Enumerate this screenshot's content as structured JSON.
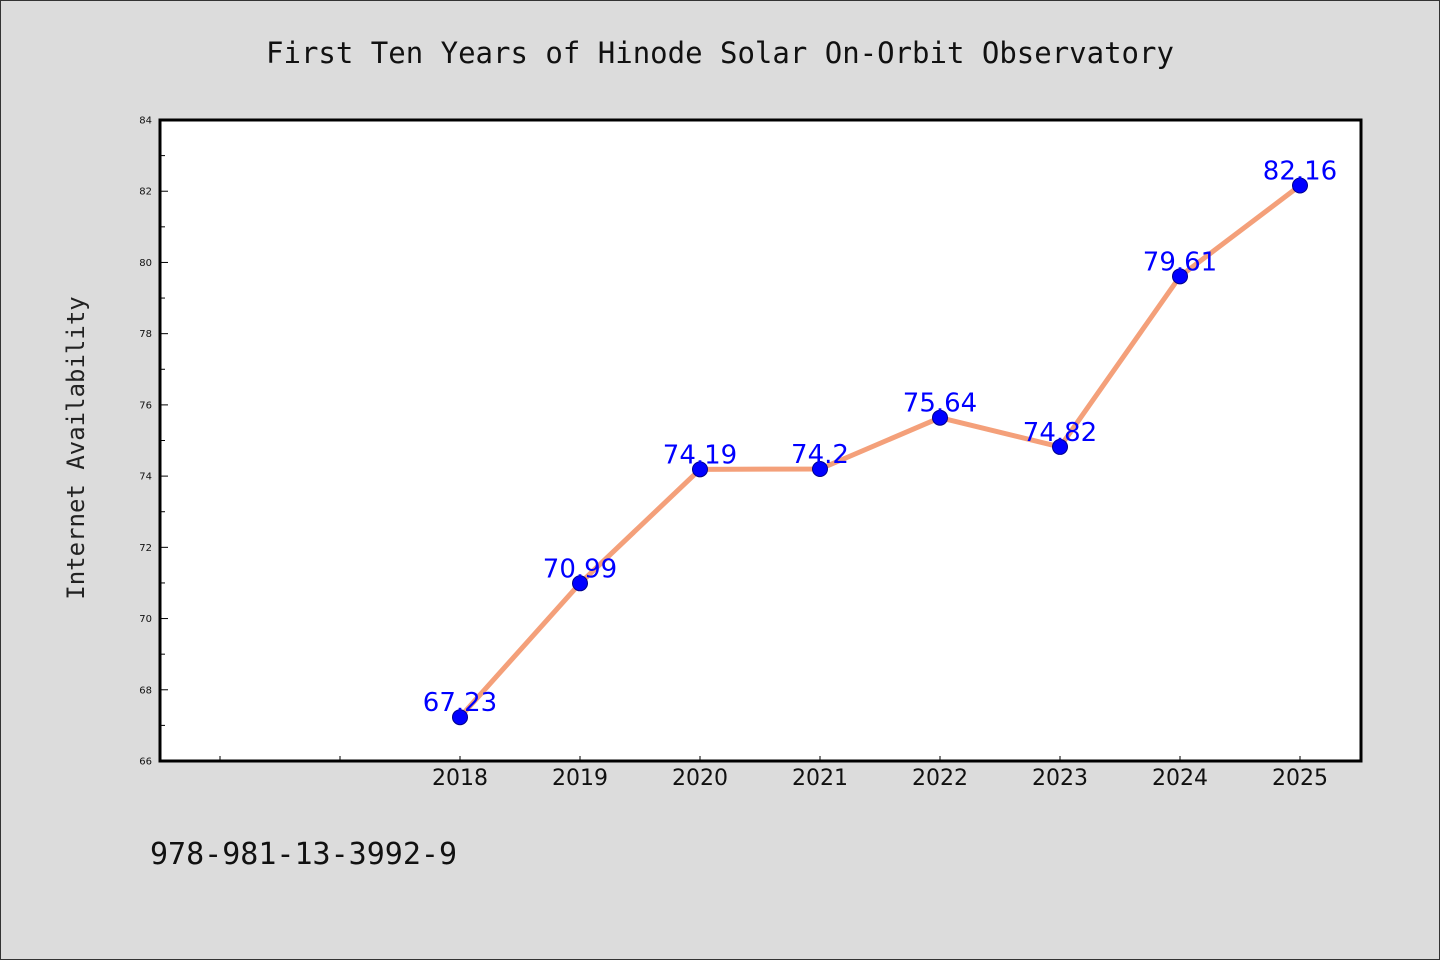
{
  "footer_text": "978-981-13-3992-9",
  "colors": {
    "line": "#f4a07a",
    "marker": "#0000ff",
    "marker_edge": "#00008b",
    "data_label": "#0000ff"
  },
  "chart_data": {
    "type": "line",
    "title": "First Ten Years of Hinode Solar On-Orbit Observatory",
    "xlabel": "",
    "ylabel": "Internet Availability",
    "categories": [
      "2018",
      "2019",
      "2020",
      "2021",
      "2022",
      "2023",
      "2024",
      "2025"
    ],
    "series": [
      {
        "values": [
          67.23,
          70.99,
          74.19,
          74.2,
          75.64,
          74.82,
          79.61,
          82.16
        ]
      }
    ],
    "data_labels": [
      "67.23",
      "70.99",
      "74.19",
      "74.2",
      "75.64",
      "74.82",
      "79.61",
      "82.16"
    ],
    "ylim": [
      66,
      84
    ],
    "yticks": [
      "66",
      "68",
      "70",
      "72",
      "74",
      "76",
      "78",
      "80",
      "82",
      "84"
    ],
    "grid": false,
    "legend": "none"
  }
}
